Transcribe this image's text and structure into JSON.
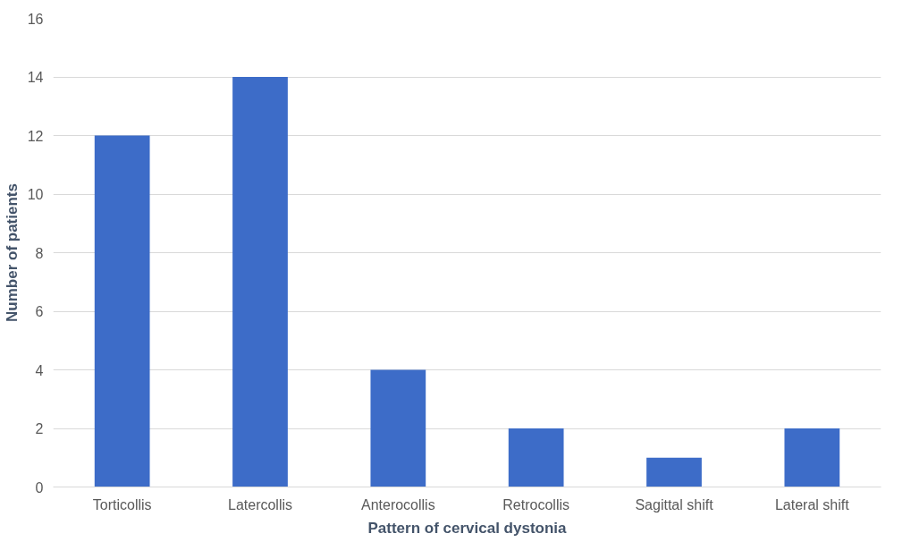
{
  "chart_data": {
    "type": "bar",
    "xlabel": "Pattern of cervical dystonia",
    "ylabel": "Number of patients",
    "categories": [
      "Torticollis",
      "Latercollis",
      "Anterocollis",
      "Retrocollis",
      "Sagittal shift",
      "Lateral shift"
    ],
    "values": [
      12,
      14,
      4,
      2,
      1,
      2
    ],
    "color": "#3d6cc8",
    "ylim": [
      0,
      16
    ],
    "yticks": [
      0,
      2,
      4,
      6,
      8,
      10,
      12,
      14,
      16
    ],
    "grid": "y"
  }
}
